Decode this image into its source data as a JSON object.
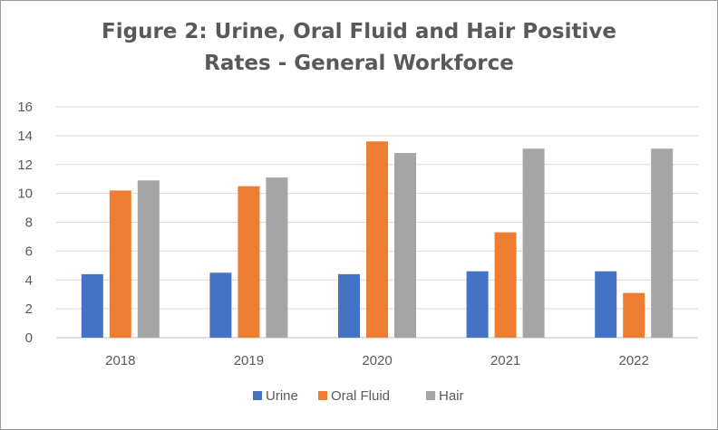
{
  "chart_data": {
    "type": "bar",
    "title_lines": [
      "Figure 2: Urine, Oral Fluid and Hair Positive",
      "Rates - General Workforce"
    ],
    "categories": [
      "2018",
      "2019",
      "2020",
      "2021",
      "2022"
    ],
    "series": [
      {
        "name": "Urine",
        "color": "#4472c4",
        "values": [
          4.4,
          4.5,
          4.4,
          4.6,
          4.6
        ]
      },
      {
        "name": "Oral Fluid",
        "color": "#ed7d31",
        "values": [
          10.2,
          10.5,
          13.6,
          7.3,
          3.1
        ]
      },
      {
        "name": "Hair",
        "color": "#a5a5a5",
        "values": [
          10.9,
          11.1,
          12.8,
          13.1,
          13.1
        ]
      }
    ],
    "ylim": [
      0,
      16
    ],
    "yticks": [
      "0",
      "2",
      "4",
      "6",
      "8",
      "10",
      "12",
      "14",
      "16"
    ],
    "grid": true,
    "legend_position": "bottom"
  }
}
